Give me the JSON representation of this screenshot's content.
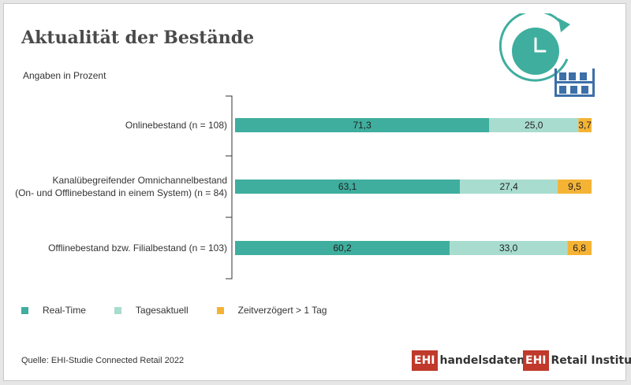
{
  "title": "Aktualität der Bestände",
  "subtitle": "Angaben in Prozent",
  "source": "Quelle: EHI-Studie Connected Retail 2022",
  "logos": {
    "handelsdaten": {
      "box": "EHI",
      "text": "handelsdaten.de"
    },
    "retail": {
      "box": "EHI",
      "text": "Retail Institute",
      "mark": "®"
    }
  },
  "colors": {
    "realtime": "#3fae9e",
    "tagesaktuell": "#a8dccf",
    "verzoegert": "#f5b335",
    "brand": "#c0392b",
    "icon": "#3fae9e",
    "icon_shelf": "#3d6fa8"
  },
  "chart_data": {
    "type": "bar",
    "orientation": "horizontal",
    "stacked": true,
    "categories": [
      [
        "Onlinebestand (n = 108)"
      ],
      [
        "Kanalübegreifender Omnichannelbestand",
        "(On- und Offlinebestand in einem System) (n = 84)"
      ],
      [
        "Offlinebestand bzw. Filialbestand (n = 103)"
      ]
    ],
    "series": [
      {
        "name": "Real-Time",
        "values": [
          71.3,
          63.1,
          60.2
        ],
        "labels": [
          "71,3",
          "63,1",
          "60,2"
        ],
        "color": "#3fae9e"
      },
      {
        "name": "Tagesaktuell",
        "values": [
          25.0,
          27.4,
          33.0
        ],
        "labels": [
          "25,0",
          "27,4",
          "33,0"
        ],
        "color": "#a8dccf"
      },
      {
        "name": "Zeitverzögert > 1 Tag",
        "values": [
          3.7,
          9.5,
          6.8
        ],
        "labels": [
          "3,7",
          "9,5",
          "6,8"
        ],
        "color": "#f5b335"
      }
    ],
    "xlim": [
      0,
      100
    ],
    "legend_position": "bottom-left",
    "grid": false
  }
}
